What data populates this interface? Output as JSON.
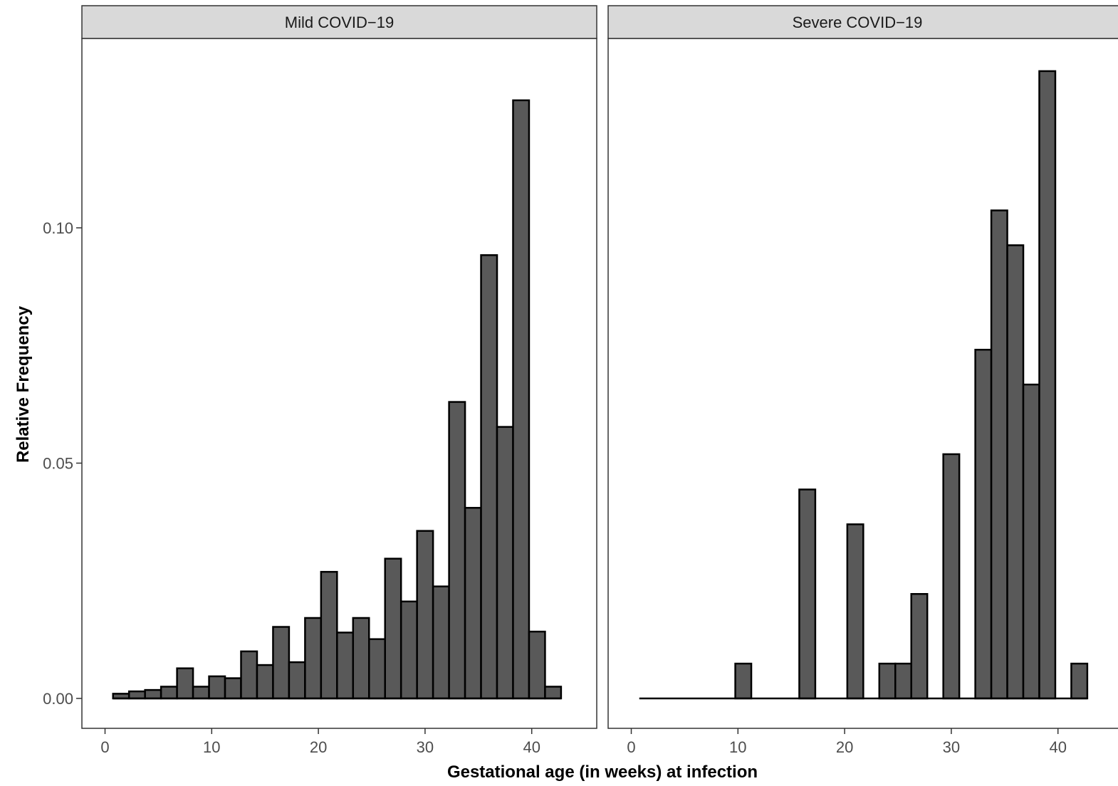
{
  "chart_data": {
    "type": "bar",
    "subtype": "faceted-histogram",
    "xlabel": "Gestational age (in weeks) at infection",
    "ylabel": "Relative Frequency",
    "xlim": [
      -1.2,
      47
    ],
    "ylim": [
      -0.0066,
      0.139
    ],
    "x_ticks": [
      0,
      10,
      20,
      30,
      40
    ],
    "x_tick_labels": [
      "0",
      "10",
      "20",
      "30",
      "40"
    ],
    "y_ticks": [
      0.0,
      0.05,
      0.1
    ],
    "y_tick_labels": [
      "0.00",
      "0.05",
      "0.10"
    ],
    "bin_width": 1.5,
    "grid": false,
    "bar_fill": "#595959",
    "bar_stroke": "#000000",
    "strip_fill": "#d9d9d9",
    "facets": [
      {
        "label": "Mild COVID−19",
        "bins": [
          {
            "x0": 0.75,
            "x1": 2.25,
            "value": 0.001
          },
          {
            "x0": 2.25,
            "x1": 3.75,
            "value": 0.0015
          },
          {
            "x0": 3.75,
            "x1": 5.25,
            "value": 0.0018
          },
          {
            "x0": 5.25,
            "x1": 6.75,
            "value": 0.0025
          },
          {
            "x0": 6.75,
            "x1": 8.25,
            "value": 0.0064
          },
          {
            "x0": 8.25,
            "x1": 9.75,
            "value": 0.0025
          },
          {
            "x0": 9.75,
            "x1": 11.25,
            "value": 0.0047
          },
          {
            "x0": 11.25,
            "x1": 12.75,
            "value": 0.0043
          },
          {
            "x0": 12.75,
            "x1": 14.25,
            "value": 0.01
          },
          {
            "x0": 14.25,
            "x1": 15.75,
            "value": 0.0071
          },
          {
            "x0": 15.75,
            "x1": 17.25,
            "value": 0.0152
          },
          {
            "x0": 17.25,
            "x1": 18.75,
            "value": 0.0077
          },
          {
            "x0": 18.75,
            "x1": 20.25,
            "value": 0.0171
          },
          {
            "x0": 20.25,
            "x1": 21.75,
            "value": 0.0269
          },
          {
            "x0": 21.75,
            "x1": 23.25,
            "value": 0.014
          },
          {
            "x0": 23.25,
            "x1": 24.75,
            "value": 0.0171
          },
          {
            "x0": 24.75,
            "x1": 26.25,
            "value": 0.0126
          },
          {
            "x0": 26.25,
            "x1": 27.75,
            "value": 0.0297
          },
          {
            "x0": 27.75,
            "x1": 29.25,
            "value": 0.0206
          },
          {
            "x0": 29.25,
            "x1": 30.75,
            "value": 0.0356
          },
          {
            "x0": 30.75,
            "x1": 32.25,
            "value": 0.0238
          },
          {
            "x0": 32.25,
            "x1": 33.75,
            "value": 0.063
          },
          {
            "x0": 33.75,
            "x1": 35.25,
            "value": 0.0405
          },
          {
            "x0": 35.25,
            "x1": 36.75,
            "value": 0.0942
          },
          {
            "x0": 36.75,
            "x1": 38.25,
            "value": 0.0577
          },
          {
            "x0": 38.25,
            "x1": 39.75,
            "value": 0.1271
          },
          {
            "x0": 39.75,
            "x1": 41.25,
            "value": 0.0142
          },
          {
            "x0": 41.25,
            "x1": 42.75,
            "value": 0.0025
          }
        ]
      },
      {
        "label": "Severe COVID−19",
        "bins": [
          {
            "x0": 0.75,
            "x1": 2.25,
            "value": 0
          },
          {
            "x0": 2.25,
            "x1": 3.75,
            "value": 0
          },
          {
            "x0": 3.75,
            "x1": 5.25,
            "value": 0
          },
          {
            "x0": 5.25,
            "x1": 6.75,
            "value": 0
          },
          {
            "x0": 6.75,
            "x1": 8.25,
            "value": 0
          },
          {
            "x0": 8.25,
            "x1": 9.75,
            "value": 0
          },
          {
            "x0": 9.75,
            "x1": 11.25,
            "value": 0.0074
          },
          {
            "x0": 11.25,
            "x1": 12.75,
            "value": 0
          },
          {
            "x0": 12.75,
            "x1": 14.25,
            "value": 0
          },
          {
            "x0": 14.25,
            "x1": 15.75,
            "value": 0
          },
          {
            "x0": 15.75,
            "x1": 17.25,
            "value": 0.0444
          },
          {
            "x0": 17.25,
            "x1": 18.75,
            "value": 0
          },
          {
            "x0": 18.75,
            "x1": 20.25,
            "value": 0
          },
          {
            "x0": 20.25,
            "x1": 21.75,
            "value": 0.037
          },
          {
            "x0": 21.75,
            "x1": 23.25,
            "value": 0
          },
          {
            "x0": 23.25,
            "x1": 24.75,
            "value": 0.0074
          },
          {
            "x0": 24.75,
            "x1": 26.25,
            "value": 0.0074
          },
          {
            "x0": 26.25,
            "x1": 27.75,
            "value": 0.0222
          },
          {
            "x0": 27.75,
            "x1": 29.25,
            "value": 0
          },
          {
            "x0": 29.25,
            "x1": 30.75,
            "value": 0.0519
          },
          {
            "x0": 30.75,
            "x1": 32.25,
            "value": 0
          },
          {
            "x0": 32.25,
            "x1": 33.75,
            "value": 0.0741
          },
          {
            "x0": 33.75,
            "x1": 35.25,
            "value": 0.1037
          },
          {
            "x0": 35.25,
            "x1": 36.75,
            "value": 0.0963
          },
          {
            "x0": 36.75,
            "x1": 38.25,
            "value": 0.0667
          },
          {
            "x0": 38.25,
            "x1": 39.75,
            "value": 0.1333
          },
          {
            "x0": 39.75,
            "x1": 41.25,
            "value": 0
          },
          {
            "x0": 41.25,
            "x1": 42.75,
            "value": 0.0074
          }
        ]
      }
    ]
  }
}
